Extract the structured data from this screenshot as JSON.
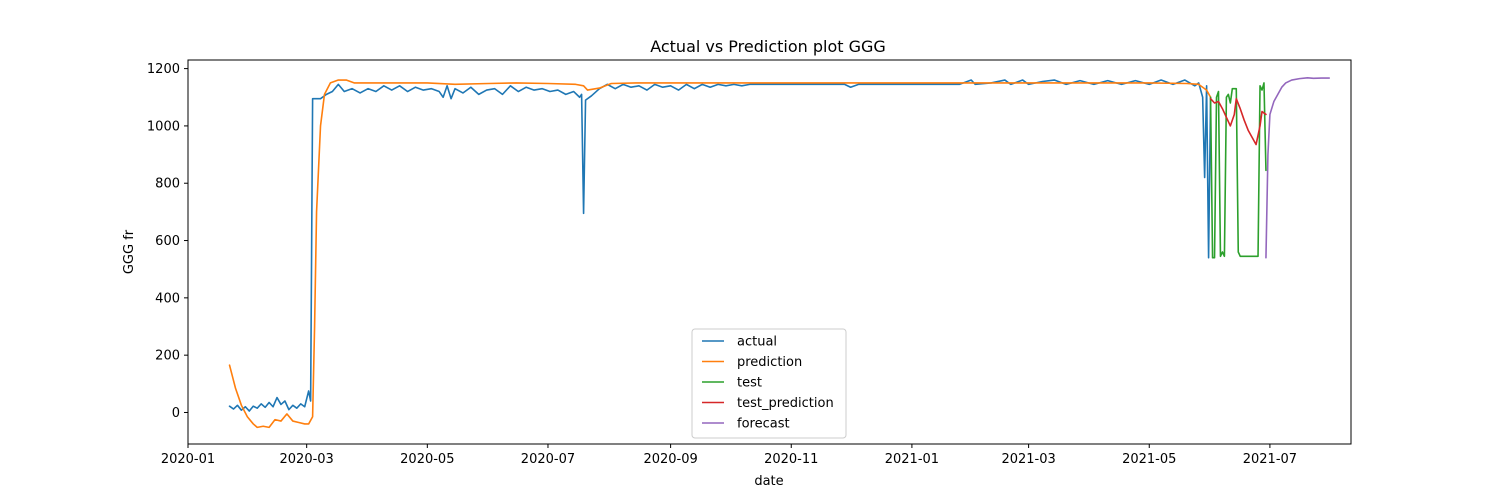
{
  "chart_data": {
    "type": "line",
    "title": "Actual vs Prediction plot GGG",
    "xlabel": "date",
    "ylabel": "GGG fr",
    "x_range": [
      "2020-01-01",
      "2021-08-11"
    ],
    "y_range": [
      -110,
      1230
    ],
    "x_ticks": [
      "2020-01-01",
      "2020-03-01",
      "2020-05-01",
      "2020-07-01",
      "2020-09-01",
      "2020-11-01",
      "2021-01-01",
      "2021-03-01",
      "2021-05-01",
      "2021-07-01"
    ],
    "x_tick_labels": [
      "2020-01",
      "2020-03",
      "2020-05",
      "2020-07",
      "2020-09",
      "2020-11",
      "2021-01",
      "2021-03",
      "2021-05",
      "2021-07"
    ],
    "y_ticks": [
      0,
      200,
      400,
      600,
      800,
      1000,
      1200
    ],
    "y_tick_labels": [
      "0",
      "200",
      "400",
      "600",
      "800",
      "1000",
      "1200"
    ],
    "grid": false,
    "legend_position": "bottom-center",
    "series": [
      {
        "name": "actual",
        "color": "#1f77b4",
        "points": [
          [
            "2020-01-22",
            22
          ],
          [
            "2020-01-24",
            12
          ],
          [
            "2020-01-26",
            25
          ],
          [
            "2020-01-28",
            8
          ],
          [
            "2020-01-30",
            20
          ],
          [
            "2020-02-01",
            5
          ],
          [
            "2020-02-03",
            22
          ],
          [
            "2020-02-05",
            15
          ],
          [
            "2020-02-07",
            30
          ],
          [
            "2020-02-09",
            18
          ],
          [
            "2020-02-11",
            35
          ],
          [
            "2020-02-13",
            20
          ],
          [
            "2020-02-15",
            52
          ],
          [
            "2020-02-17",
            28
          ],
          [
            "2020-02-19",
            40
          ],
          [
            "2020-02-21",
            10
          ],
          [
            "2020-02-23",
            25
          ],
          [
            "2020-02-25",
            15
          ],
          [
            "2020-02-27",
            30
          ],
          [
            "2020-02-29",
            20
          ],
          [
            "2020-03-02",
            75
          ],
          [
            "2020-03-03",
            40
          ],
          [
            "2020-03-04",
            1095
          ],
          [
            "2020-03-08",
            1095
          ],
          [
            "2020-03-11",
            1110
          ],
          [
            "2020-03-14",
            1120
          ],
          [
            "2020-03-17",
            1145
          ],
          [
            "2020-03-20",
            1120
          ],
          [
            "2020-03-24",
            1130
          ],
          [
            "2020-03-28",
            1115
          ],
          [
            "2020-04-01",
            1130
          ],
          [
            "2020-04-05",
            1120
          ],
          [
            "2020-04-09",
            1140
          ],
          [
            "2020-04-13",
            1125
          ],
          [
            "2020-04-17",
            1140
          ],
          [
            "2020-04-21",
            1120
          ],
          [
            "2020-04-25",
            1135
          ],
          [
            "2020-04-29",
            1125
          ],
          [
            "2020-05-03",
            1130
          ],
          [
            "2020-05-07",
            1120
          ],
          [
            "2020-05-09",
            1100
          ],
          [
            "2020-05-11",
            1140
          ],
          [
            "2020-05-13",
            1095
          ],
          [
            "2020-05-15",
            1130
          ],
          [
            "2020-05-19",
            1115
          ],
          [
            "2020-05-23",
            1135
          ],
          [
            "2020-05-27",
            1110
          ],
          [
            "2020-05-31",
            1125
          ],
          [
            "2020-06-04",
            1130
          ],
          [
            "2020-06-08",
            1110
          ],
          [
            "2020-06-12",
            1140
          ],
          [
            "2020-06-16",
            1120
          ],
          [
            "2020-06-20",
            1135
          ],
          [
            "2020-06-24",
            1125
          ],
          [
            "2020-06-28",
            1130
          ],
          [
            "2020-07-02",
            1120
          ],
          [
            "2020-07-06",
            1125
          ],
          [
            "2020-07-10",
            1110
          ],
          [
            "2020-07-14",
            1120
          ],
          [
            "2020-07-17",
            1100
          ],
          [
            "2020-07-18",
            1110
          ],
          [
            "2020-07-19",
            695
          ],
          [
            "2020-07-20",
            1090
          ],
          [
            "2020-07-23",
            1105
          ],
          [
            "2020-07-27",
            1130
          ],
          [
            "2020-07-31",
            1145
          ],
          [
            "2020-08-04",
            1130
          ],
          [
            "2020-08-08",
            1145
          ],
          [
            "2020-08-12",
            1135
          ],
          [
            "2020-08-16",
            1140
          ],
          [
            "2020-08-20",
            1125
          ],
          [
            "2020-08-24",
            1145
          ],
          [
            "2020-08-28",
            1135
          ],
          [
            "2020-09-01",
            1140
          ],
          [
            "2020-09-05",
            1125
          ],
          [
            "2020-09-09",
            1145
          ],
          [
            "2020-09-13",
            1130
          ],
          [
            "2020-09-17",
            1145
          ],
          [
            "2020-09-21",
            1135
          ],
          [
            "2020-09-25",
            1145
          ],
          [
            "2020-09-29",
            1140
          ],
          [
            "2020-10-03",
            1145
          ],
          [
            "2020-10-07",
            1140
          ],
          [
            "2020-10-11",
            1145
          ],
          [
            "2020-10-15",
            1145
          ],
          [
            "2020-10-20",
            1145
          ],
          [
            "2020-10-25",
            1145
          ],
          [
            "2020-11-01",
            1145
          ],
          [
            "2020-11-10",
            1145
          ],
          [
            "2020-11-20",
            1145
          ],
          [
            "2020-11-28",
            1145
          ],
          [
            "2020-12-01",
            1135
          ],
          [
            "2020-12-05",
            1145
          ],
          [
            "2020-12-15",
            1145
          ],
          [
            "2020-12-25",
            1145
          ],
          [
            "2021-01-01",
            1145
          ],
          [
            "2021-01-15",
            1145
          ],
          [
            "2021-01-25",
            1145
          ],
          [
            "2021-01-31",
            1160
          ],
          [
            "2021-02-02",
            1145
          ],
          [
            "2021-02-10",
            1150
          ],
          [
            "2021-02-17",
            1160
          ],
          [
            "2021-02-20",
            1145
          ],
          [
            "2021-02-26",
            1160
          ],
          [
            "2021-03-01",
            1145
          ],
          [
            "2021-03-08",
            1155
          ],
          [
            "2021-03-14",
            1160
          ],
          [
            "2021-03-20",
            1145
          ],
          [
            "2021-03-27",
            1158
          ],
          [
            "2021-04-03",
            1145
          ],
          [
            "2021-04-10",
            1158
          ],
          [
            "2021-04-17",
            1145
          ],
          [
            "2021-04-24",
            1158
          ],
          [
            "2021-05-01",
            1145
          ],
          [
            "2021-05-07",
            1160
          ],
          [
            "2021-05-13",
            1145
          ],
          [
            "2021-05-19",
            1160
          ],
          [
            "2021-05-24",
            1140
          ],
          [
            "2021-05-26",
            1150
          ],
          [
            "2021-05-28",
            1100
          ],
          [
            "2021-05-29",
            820
          ],
          [
            "2021-05-30",
            1140
          ],
          [
            "2021-05-31",
            540
          ],
          [
            "2021-06-01",
            1100
          ]
        ]
      },
      {
        "name": "prediction",
        "color": "#ff7f0e",
        "points": [
          [
            "2020-01-22",
            165
          ],
          [
            "2020-01-25",
            85
          ],
          [
            "2020-01-28",
            25
          ],
          [
            "2020-01-31",
            -15
          ],
          [
            "2020-02-03",
            -40
          ],
          [
            "2020-02-05",
            -52
          ],
          [
            "2020-02-08",
            -48
          ],
          [
            "2020-02-11",
            -52
          ],
          [
            "2020-02-14",
            -25
          ],
          [
            "2020-02-17",
            -30
          ],
          [
            "2020-02-20",
            -5
          ],
          [
            "2020-02-23",
            -30
          ],
          [
            "2020-02-26",
            -35
          ],
          [
            "2020-02-29",
            -40
          ],
          [
            "2020-03-02",
            -40
          ],
          [
            "2020-03-04",
            -15
          ],
          [
            "2020-03-05",
            300
          ],
          [
            "2020-03-06",
            700
          ],
          [
            "2020-03-08",
            1000
          ],
          [
            "2020-03-10",
            1110
          ],
          [
            "2020-03-13",
            1150
          ],
          [
            "2020-03-17",
            1160
          ],
          [
            "2020-03-21",
            1160
          ],
          [
            "2020-03-25",
            1150
          ],
          [
            "2020-04-05",
            1150
          ],
          [
            "2020-04-15",
            1150
          ],
          [
            "2020-05-01",
            1150
          ],
          [
            "2020-05-15",
            1145
          ],
          [
            "2020-06-01",
            1148
          ],
          [
            "2020-06-15",
            1150
          ],
          [
            "2020-07-01",
            1148
          ],
          [
            "2020-07-15",
            1145
          ],
          [
            "2020-07-19",
            1140
          ],
          [
            "2020-07-21",
            1125
          ],
          [
            "2020-07-27",
            1132
          ],
          [
            "2020-08-02",
            1148
          ],
          [
            "2020-08-15",
            1150
          ],
          [
            "2020-09-01",
            1150
          ],
          [
            "2020-10-01",
            1150
          ],
          [
            "2020-11-01",
            1150
          ],
          [
            "2020-12-01",
            1150
          ],
          [
            "2021-01-01",
            1150
          ],
          [
            "2021-02-01",
            1150
          ],
          [
            "2021-03-01",
            1150
          ],
          [
            "2021-04-01",
            1150
          ],
          [
            "2021-05-01",
            1150
          ],
          [
            "2021-05-20",
            1148
          ],
          [
            "2021-05-26",
            1145
          ],
          [
            "2021-05-30",
            1125
          ],
          [
            "2021-06-01",
            1100
          ]
        ]
      },
      {
        "name": "test",
        "color": "#2ca02c",
        "points": [
          [
            "2021-06-01",
            1100
          ],
          [
            "2021-06-02",
            540
          ],
          [
            "2021-06-03",
            540
          ],
          [
            "2021-06-04",
            1100
          ],
          [
            "2021-06-05",
            1120
          ],
          [
            "2021-06-06",
            545
          ],
          [
            "2021-06-07",
            560
          ],
          [
            "2021-06-08",
            545
          ],
          [
            "2021-06-09",
            1100
          ],
          [
            "2021-06-10",
            1110
          ],
          [
            "2021-06-11",
            1080
          ],
          [
            "2021-06-12",
            1130
          ],
          [
            "2021-06-14",
            1130
          ],
          [
            "2021-06-15",
            560
          ],
          [
            "2021-06-16",
            545
          ],
          [
            "2021-06-20",
            545
          ],
          [
            "2021-06-25",
            545
          ],
          [
            "2021-06-26",
            1140
          ],
          [
            "2021-06-27",
            1125
          ],
          [
            "2021-06-28",
            1150
          ],
          [
            "2021-06-29",
            845
          ]
        ]
      },
      {
        "name": "test_prediction",
        "color": "#d62728",
        "points": [
          [
            "2021-06-01",
            1095
          ],
          [
            "2021-06-03",
            1080
          ],
          [
            "2021-06-05",
            1085
          ],
          [
            "2021-06-07",
            1060
          ],
          [
            "2021-06-09",
            1030
          ],
          [
            "2021-06-11",
            1000
          ],
          [
            "2021-06-13",
            1040
          ],
          [
            "2021-06-14",
            1095
          ],
          [
            "2021-06-16",
            1060
          ],
          [
            "2021-06-18",
            1020
          ],
          [
            "2021-06-20",
            985
          ],
          [
            "2021-06-22",
            960
          ],
          [
            "2021-06-24",
            935
          ],
          [
            "2021-06-26",
            1000
          ],
          [
            "2021-06-27",
            1050
          ],
          [
            "2021-06-29",
            1040
          ]
        ]
      },
      {
        "name": "forecast",
        "color": "#9467bd",
        "points": [
          [
            "2021-06-29",
            540
          ],
          [
            "2021-06-30",
            900
          ],
          [
            "2021-07-01",
            1040
          ],
          [
            "2021-07-03",
            1085
          ],
          [
            "2021-07-05",
            1110
          ],
          [
            "2021-07-07",
            1135
          ],
          [
            "2021-07-09",
            1150
          ],
          [
            "2021-07-12",
            1160
          ],
          [
            "2021-07-16",
            1165
          ],
          [
            "2021-07-20",
            1168
          ],
          [
            "2021-07-23",
            1166
          ],
          [
            "2021-07-27",
            1167
          ],
          [
            "2021-07-31",
            1167
          ]
        ]
      }
    ]
  }
}
